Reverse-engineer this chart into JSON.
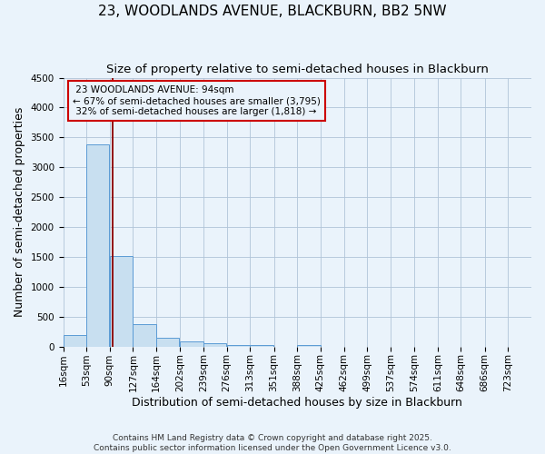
{
  "title_line1": "23, WOODLANDS AVENUE, BLACKBURN, BB2 5NW",
  "title_line2": "Size of property relative to semi-detached houses in Blackburn",
  "xlabel": "Distribution of semi-detached houses by size in Blackburn",
  "ylabel": "Number of semi-detached properties",
  "footer": "Contains HM Land Registry data © Crown copyright and database right 2025.\nContains public sector information licensed under the Open Government Licence v3.0.",
  "bins": [
    16,
    53,
    90,
    127,
    164,
    202,
    239,
    276,
    313,
    351,
    388,
    425,
    462,
    499,
    537,
    574,
    611,
    648,
    686,
    723,
    760
  ],
  "bar_heights": [
    190,
    3380,
    1510,
    380,
    145,
    90,
    55,
    30,
    20,
    0,
    30,
    0,
    0,
    0,
    0,
    0,
    0,
    0,
    0,
    0
  ],
  "property_size": 94,
  "property_label": "23 WOODLANDS AVENUE: 94sqm",
  "pct_smaller": 67,
  "pct_larger": 32,
  "n_smaller": 3795,
  "n_larger": 1818,
  "bar_color": "#c8dff0",
  "bar_edge_color": "#5b9bd5",
  "vline_color": "#8b0000",
  "annotation_box_color": "#cc0000",
  "bg_color": "#eaf3fb",
  "grid_color": "#b0c4d8",
  "ylim": [
    0,
    4500
  ],
  "title_fontsize": 11,
  "subtitle_fontsize": 9.5,
  "axis_label_fontsize": 9,
  "tick_fontsize": 7.5,
  "annotation_fontsize": 7.5,
  "footer_fontsize": 6.5
}
